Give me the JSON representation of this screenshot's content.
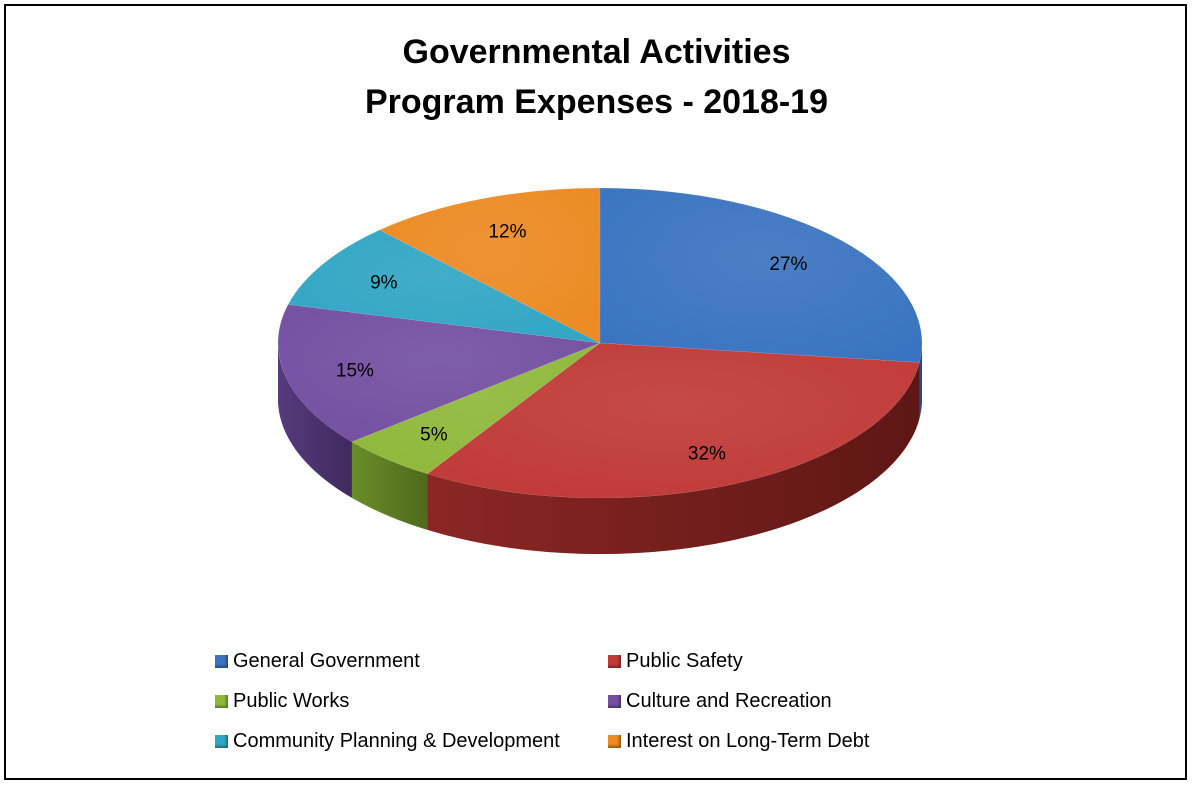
{
  "chart_data": {
    "type": "pie",
    "title_line1": "Governmental Activities",
    "title_line2": "Program Expenses - 2018-19",
    "categories": [
      "General Government",
      "Public Safety",
      "Public Works",
      "Culture and Recreation",
      "Community Planning & Development",
      "Interest on Long-Term Debt"
    ],
    "values": [
      27,
      32,
      5,
      15,
      9,
      12
    ],
    "labels": [
      "27%",
      "32%",
      "5%",
      "15%",
      "9%",
      "12%"
    ],
    "colors": [
      "#3a74c0",
      "#c03a38",
      "#8fb83b",
      "#7450a1",
      "#31a6c4",
      "#ec8a23"
    ],
    "dark_colors": [
      "#1f3f6e",
      "#5e1715",
      "#4f6a1c",
      "#3f2a5e",
      "#17606f",
      "#9a5514"
    ],
    "legend_placement": "bottom",
    "style": "3d"
  }
}
